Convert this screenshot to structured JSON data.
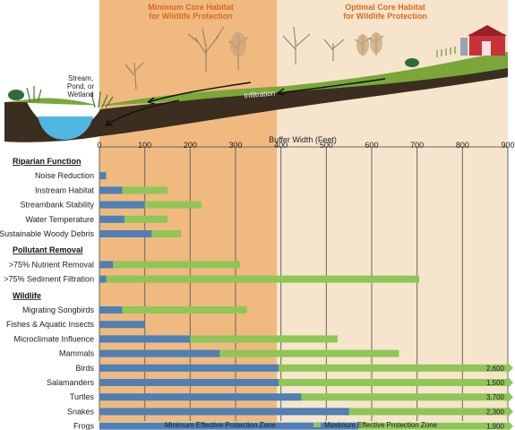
{
  "header": {
    "min_zone_title": [
      "Minimum Core Habitat",
      "for Wildlife Protection"
    ],
    "opt_zone_title": [
      "Optimal Core Habitat",
      "for Wildlife Protection"
    ],
    "stream_label": [
      "Stream,",
      "Pond, or",
      "Wetland"
    ],
    "infiltration_label": "Infiltration"
  },
  "colors": {
    "min_bar": "#4f7fb5",
    "max_bar": "#8fc657",
    "min_zone": "#f0b97f",
    "opt_zone": "#f6e5cc",
    "title_orange": "#d9691e",
    "water": "#4fb7e0",
    "hill": "#7aa63a",
    "soil": "#3b2d1f",
    "barn": "#c8323a"
  },
  "chart_data": {
    "type": "bar",
    "orientation": "horizontal",
    "stacked": false,
    "xlabel": "Buffer Width (Feet)",
    "xlim": [
      0,
      900
    ],
    "xticks": [
      0,
      100,
      200,
      300,
      400,
      500,
      600,
      700,
      800,
      900
    ],
    "grid": true,
    "legend_position": "bottom",
    "background_zones": [
      {
        "from": 0,
        "to": 390,
        "label": "Minimum Core Habitat for Wildlife Protection"
      },
      {
        "from": 390,
        "to": 900,
        "label": "Optimal Core Habitat for Wildlife Protection"
      }
    ],
    "groups": [
      {
        "name": "Riparian Function",
        "rows": [
          {
            "label": "Noise Reduction",
            "min": 15,
            "max": 15
          },
          {
            "label": "Instream Habitat",
            "min": 50,
            "max": 150
          },
          {
            "label": "Streambank Stability",
            "min": 100,
            "max": 225
          },
          {
            "label": "Water Temperature",
            "min": 55,
            "max": 150
          },
          {
            "label": "Sustainable Woody Debris",
            "min": 115,
            "max": 180
          }
        ]
      },
      {
        "name": "Pollutant Removal",
        "rows": [
          {
            "label": ">75% Nutrient Removal",
            "min": 30,
            "max": 310
          },
          {
            "label": ">75% Sediment Filtration",
            "min": 15,
            "max": 705
          }
        ]
      },
      {
        "name": "Wildlife",
        "rows": [
          {
            "label": "Migrating Songbirds",
            "min": 50,
            "max": 325
          },
          {
            "label": "Fishes & Aquatic Insects",
            "min": 100,
            "max": 100
          },
          {
            "label": "Microclimate Influence",
            "min": 200,
            "max": 525
          },
          {
            "label": "Mammals",
            "min": 265,
            "max": 660
          },
          {
            "label": "Birds",
            "min": 395,
            "max": 2600,
            "max_label": "2,600"
          },
          {
            "label": "Salamanders",
            "min": 395,
            "max": 1500,
            "max_label": "1,500"
          },
          {
            "label": "Turtles",
            "min": 445,
            "max": 3700,
            "max_label": "3,700"
          },
          {
            "label": "Snakes",
            "min": 550,
            "max": 2300,
            "max_label": "2,300"
          },
          {
            "label": "Frogs",
            "min": 570,
            "max": 1900,
            "max_label": "1,900"
          }
        ]
      }
    ],
    "series": [
      {
        "name": "Minimum Effective Protection Zone",
        "key": "min"
      },
      {
        "name": "Maximum Effective Protection Zone",
        "key": "max"
      }
    ]
  }
}
